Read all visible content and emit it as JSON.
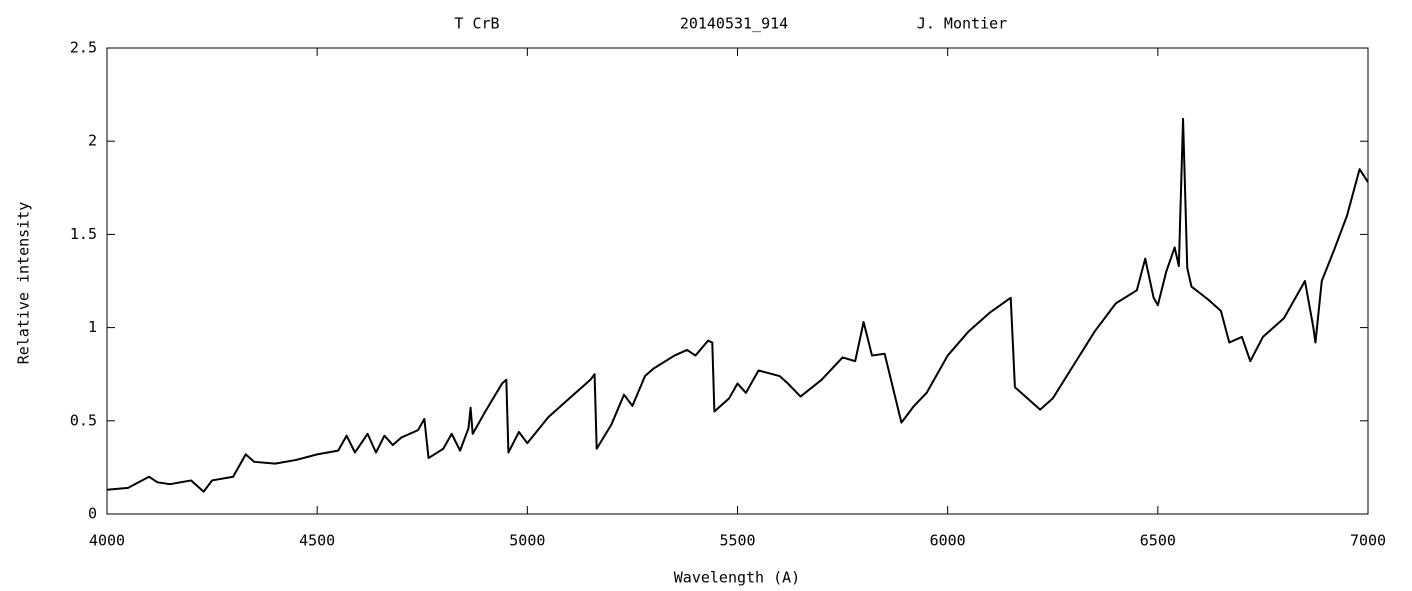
{
  "chart_data": {
    "type": "line",
    "title_parts": [
      "T CrB",
      "20140531_914",
      "J. Montier"
    ],
    "x_label": "Wavelength (A)",
    "y_label": "Relative intensity",
    "xlim": [
      4000,
      7000
    ],
    "xticks": [
      4000,
      4500,
      5000,
      5500,
      6000,
      6500,
      7000
    ],
    "ylim": [
      0,
      2.5
    ],
    "yticks": [
      0,
      0.5,
      1,
      1.5,
      2,
      2.5
    ],
    "color": "#000000",
    "x": [
      4000,
      4050,
      4100,
      4120,
      4150,
      4200,
      4230,
      4250,
      4300,
      4330,
      4350,
      4400,
      4450,
      4500,
      4550,
      4570,
      4590,
      4620,
      4640,
      4660,
      4680,
      4700,
      4740,
      4755,
      4765,
      4800,
      4820,
      4840,
      4860,
      4865,
      4870,
      4900,
      4940,
      4950,
      4955,
      4980,
      5000,
      5050,
      5100,
      5150,
      5160,
      5165,
      5200,
      5230,
      5250,
      5280,
      5300,
      5350,
      5380,
      5400,
      5430,
      5440,
      5445,
      5480,
      5500,
      5520,
      5550,
      5600,
      5620,
      5650,
      5700,
      5750,
      5780,
      5800,
      5820,
      5850,
      5890,
      5920,
      5950,
      6000,
      6050,
      6100,
      6150,
      6160,
      6200,
      6220,
      6250,
      6300,
      6350,
      6400,
      6450,
      6470,
      6490,
      6500,
      6520,
      6540,
      6550,
      6560,
      6570,
      6580,
      6620,
      6650,
      6670,
      6700,
      6720,
      6750,
      6800,
      6850,
      6870,
      6875,
      6890,
      6920,
      6950,
      6980,
      7000
    ],
    "y": [
      0.13,
      0.14,
      0.2,
      0.17,
      0.16,
      0.18,
      0.12,
      0.18,
      0.2,
      0.32,
      0.28,
      0.27,
      0.29,
      0.32,
      0.34,
      0.42,
      0.33,
      0.43,
      0.33,
      0.42,
      0.37,
      0.41,
      0.45,
      0.51,
      0.3,
      0.35,
      0.43,
      0.34,
      0.46,
      0.57,
      0.43,
      0.55,
      0.7,
      0.72,
      0.33,
      0.44,
      0.38,
      0.52,
      0.62,
      0.72,
      0.75,
      0.35,
      0.48,
      0.64,
      0.58,
      0.74,
      0.78,
      0.85,
      0.88,
      0.85,
      0.93,
      0.92,
      0.55,
      0.62,
      0.7,
      0.65,
      0.77,
      0.74,
      0.7,
      0.63,
      0.72,
      0.84,
      0.82,
      1.03,
      0.85,
      0.86,
      0.49,
      0.58,
      0.65,
      0.85,
      0.98,
      1.08,
      1.16,
      0.68,
      0.6,
      0.56,
      0.62,
      0.8,
      0.98,
      1.13,
      1.2,
      1.37,
      1.16,
      1.12,
      1.3,
      1.43,
      1.33,
      2.12,
      1.32,
      1.22,
      1.15,
      1.09,
      0.92,
      0.95,
      0.82,
      0.95,
      1.05,
      1.25,
      1.0,
      0.92,
      1.25,
      1.42,
      1.6,
      1.85,
      1.78
    ]
  }
}
